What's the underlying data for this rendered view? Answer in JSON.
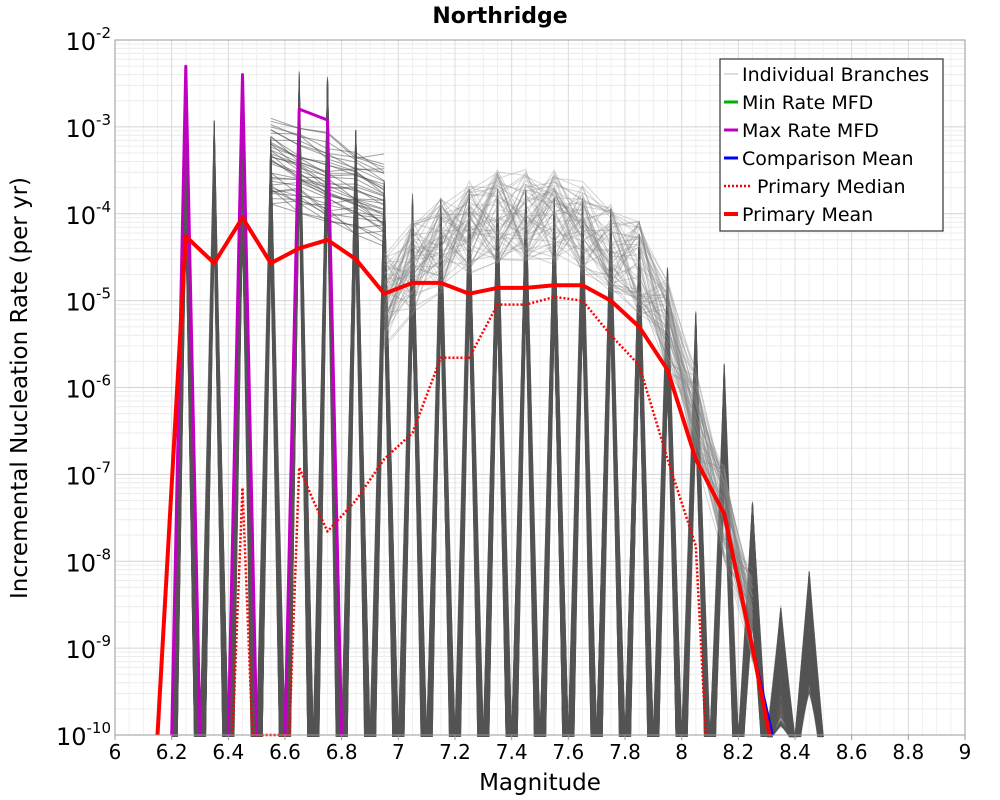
{
  "chart_data": {
    "type": "line",
    "title": "Northridge",
    "xlabel": "Magnitude",
    "ylabel": "Incremental Nucleation Rate (per yr)",
    "xlim": [
      6,
      9
    ],
    "ylim": [
      1e-10,
      0.01
    ],
    "yscale": "log",
    "grid": true,
    "legend_position": "top-right",
    "xticks": [
      "6",
      "6.2",
      "6.4",
      "6.6",
      "6.8",
      "7",
      "7.2",
      "7.4",
      "7.6",
      "7.8",
      "8",
      "8.2",
      "8.4",
      "8.6",
      "8.8",
      "9"
    ],
    "yticks": [
      {
        "base": "10",
        "exp": "-2"
      },
      {
        "base": "10",
        "exp": "-3"
      },
      {
        "base": "10",
        "exp": "-4"
      },
      {
        "base": "10",
        "exp": "-5"
      },
      {
        "base": "10",
        "exp": "-6"
      },
      {
        "base": "10",
        "exp": "-7"
      },
      {
        "base": "10",
        "exp": "-8"
      },
      {
        "base": "10",
        "exp": "-9"
      },
      {
        "base": "10",
        "exp": "-10"
      }
    ],
    "series": [
      {
        "name": "Primary Mean",
        "color": "#ff0000",
        "style": "solid",
        "x": [
          6.15,
          6.25,
          6.35,
          6.45,
          6.55,
          6.65,
          6.75,
          6.85,
          6.95,
          7.05,
          7.15,
          7.25,
          7.35,
          7.45,
          7.55,
          7.65,
          7.75,
          7.85,
          7.95,
          8.05,
          8.15,
          8.25,
          8.31
        ],
        "y": [
          1e-10,
          5.5e-05,
          2.7e-05,
          9e-05,
          2.7e-05,
          4e-05,
          5e-05,
          3e-05,
          1.2e-05,
          1.6e-05,
          1.6e-05,
          1.2e-05,
          1.4e-05,
          1.4e-05,
          1.5e-05,
          1.5e-05,
          1e-05,
          5e-06,
          1.6e-06,
          1.5e-07,
          3.5e-08,
          1e-09,
          1e-10
        ]
      },
      {
        "name": "Primary Median",
        "color": "#ff0000",
        "style": "dotted",
        "x": [
          6.415,
          6.45,
          6.485,
          6.615,
          6.65,
          6.7,
          6.75,
          6.85,
          6.95,
          7.05,
          7.15,
          7.25,
          7.35,
          7.45,
          7.55,
          7.65,
          7.75,
          7.85,
          7.95,
          8.05,
          8.085
        ],
        "y": [
          1e-10,
          7e-08,
          1e-10,
          1e-10,
          1.2e-07,
          5e-08,
          2.2e-08,
          5e-08,
          1.5e-07,
          3e-07,
          2.2e-06,
          2.2e-06,
          9e-06,
          9e-06,
          1.1e-05,
          1e-05,
          4e-06,
          1.8e-06,
          1.5e-07,
          1.5e-08,
          1e-10
        ]
      },
      {
        "name": "Max Rate MFD",
        "color": "#c000c0",
        "style": "solid",
        "segments": [
          {
            "x": [
              6.2,
              6.25,
              6.3
            ],
            "y": [
              1e-10,
              0.005,
              1e-10
            ]
          },
          {
            "x": [
              6.4,
              6.45,
              6.5
            ],
            "y": [
              1e-10,
              0.004,
              1e-10
            ]
          },
          {
            "x": [
              6.6,
              6.65,
              6.75,
              6.8
            ],
            "y": [
              1e-10,
              0.0016,
              0.0012,
              1e-10
            ]
          }
        ]
      },
      {
        "name": "Comparison Mean",
        "color": "#0000ff",
        "style": "solid",
        "x": [
          8.25,
          8.32
        ],
        "y": [
          1e-09,
          1e-10
        ]
      },
      {
        "name": "Min Rate MFD",
        "color": "#00b000",
        "style": "solid",
        "x": [],
        "y": []
      },
      {
        "name": "Individual Branches",
        "color": "#555555",
        "style": "thin",
        "x": [],
        "y": []
      }
    ],
    "legend": [
      {
        "label": "Individual Branches",
        "color": "#bbbbbb",
        "style": "thin"
      },
      {
        "label": "Min Rate MFD",
        "color": "#00b000",
        "style": "solid"
      },
      {
        "label": "Max Rate MFD",
        "color": "#c000c0",
        "style": "solid"
      },
      {
        "label": "Comparison Mean",
        "color": "#0000ff",
        "style": "solid"
      },
      {
        "label": "Primary Median",
        "color": "#ff0000",
        "style": "dotted"
      },
      {
        "label": "Primary Mean",
        "color": "#ff0000",
        "style": "thick"
      }
    ]
  }
}
